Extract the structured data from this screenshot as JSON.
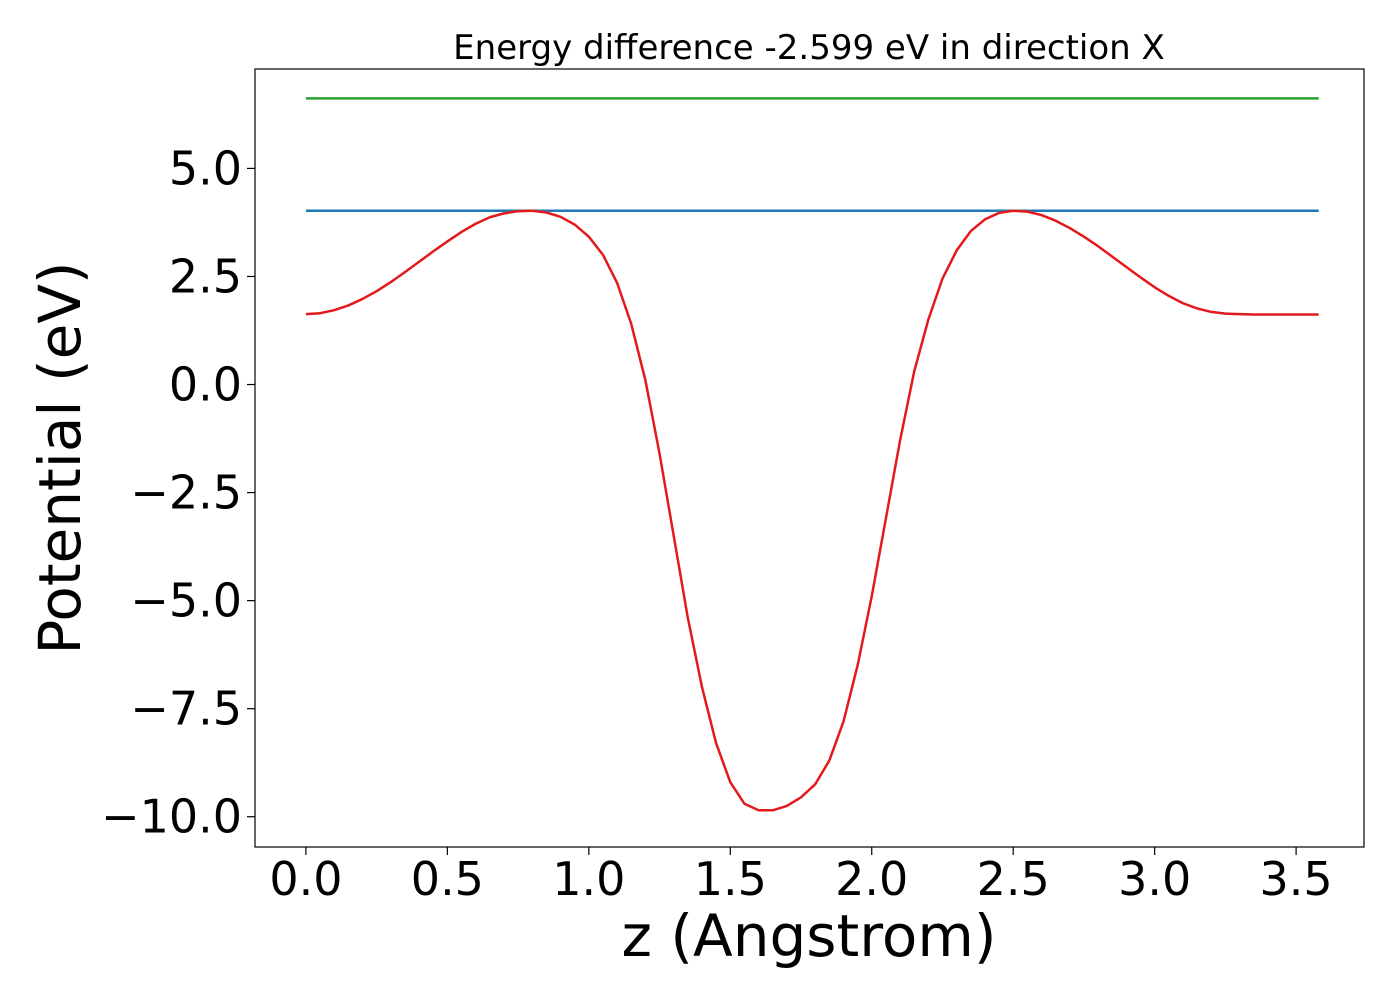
{
  "chart_data": {
    "type": "line",
    "title": "Energy difference -2.599 eV in direction X",
    "xlabel": "z (Angstrom)",
    "ylabel": "Potential (eV)",
    "xlim": [
      -0.18,
      3.74
    ],
    "ylim": [
      -10.7,
      7.3
    ],
    "xticks": [
      0.0,
      0.5,
      1.0,
      1.5,
      2.0,
      2.5,
      3.0,
      3.5
    ],
    "xtick_labels": [
      "0.0",
      "0.5",
      "1.0",
      "1.5",
      "2.0",
      "2.5",
      "3.0",
      "3.5"
    ],
    "yticks": [
      -10.0,
      -7.5,
      -5.0,
      -2.5,
      0.0,
      2.5,
      5.0
    ],
    "ytick_labels": [
      "−10.0",
      "−7.5",
      "−5.0",
      "−2.5",
      "0.0",
      "2.5",
      "5.0"
    ],
    "grid": false,
    "series": [
      {
        "color": "#2ca02c",
        "x": [
          0.0,
          3.58
        ],
        "y": [
          6.62,
          6.62
        ]
      },
      {
        "color": "#1f77b4",
        "x": [
          0.0,
          3.58
        ],
        "y": [
          4.02,
          4.02
        ]
      },
      {
        "color": "#e31a1c",
        "x": [
          0.0,
          0.05,
          0.1,
          0.15,
          0.2,
          0.25,
          0.3,
          0.35,
          0.4,
          0.45,
          0.5,
          0.55,
          0.6,
          0.65,
          0.7,
          0.75,
          0.8,
          0.85,
          0.9,
          0.95,
          1.0,
          1.05,
          1.1,
          1.15,
          1.2,
          1.25,
          1.3,
          1.35,
          1.4,
          1.45,
          1.5,
          1.55,
          1.6,
          1.65,
          1.7,
          1.75,
          1.8,
          1.85,
          1.9,
          1.95,
          2.0,
          2.05,
          2.1,
          2.15,
          2.2,
          2.25,
          2.3,
          2.35,
          2.4,
          2.45,
          2.5,
          2.55,
          2.6,
          2.65,
          2.7,
          2.75,
          2.8,
          2.85,
          2.9,
          2.95,
          3.0,
          3.05,
          3.1,
          3.15,
          3.2,
          3.25,
          3.3,
          3.35,
          3.4,
          3.45,
          3.5,
          3.55,
          3.58
        ],
        "y": [
          1.63,
          1.65,
          1.72,
          1.83,
          1.98,
          2.16,
          2.37,
          2.6,
          2.84,
          3.08,
          3.31,
          3.53,
          3.72,
          3.87,
          3.96,
          4.01,
          4.02,
          3.98,
          3.88,
          3.7,
          3.42,
          3.0,
          2.35,
          1.4,
          0.1,
          -1.6,
          -3.5,
          -5.4,
          -7.0,
          -8.3,
          -9.2,
          -9.7,
          -9.85,
          -9.85,
          -9.75,
          -9.55,
          -9.25,
          -8.7,
          -7.8,
          -6.5,
          -4.9,
          -3.1,
          -1.3,
          0.3,
          1.5,
          2.45,
          3.1,
          3.55,
          3.82,
          3.97,
          4.02,
          4.0,
          3.92,
          3.79,
          3.62,
          3.42,
          3.2,
          2.96,
          2.72,
          2.48,
          2.25,
          2.05,
          1.88,
          1.76,
          1.68,
          1.64,
          1.63,
          1.62,
          1.62,
          1.62,
          1.62,
          1.62,
          1.62
        ]
      }
    ]
  }
}
